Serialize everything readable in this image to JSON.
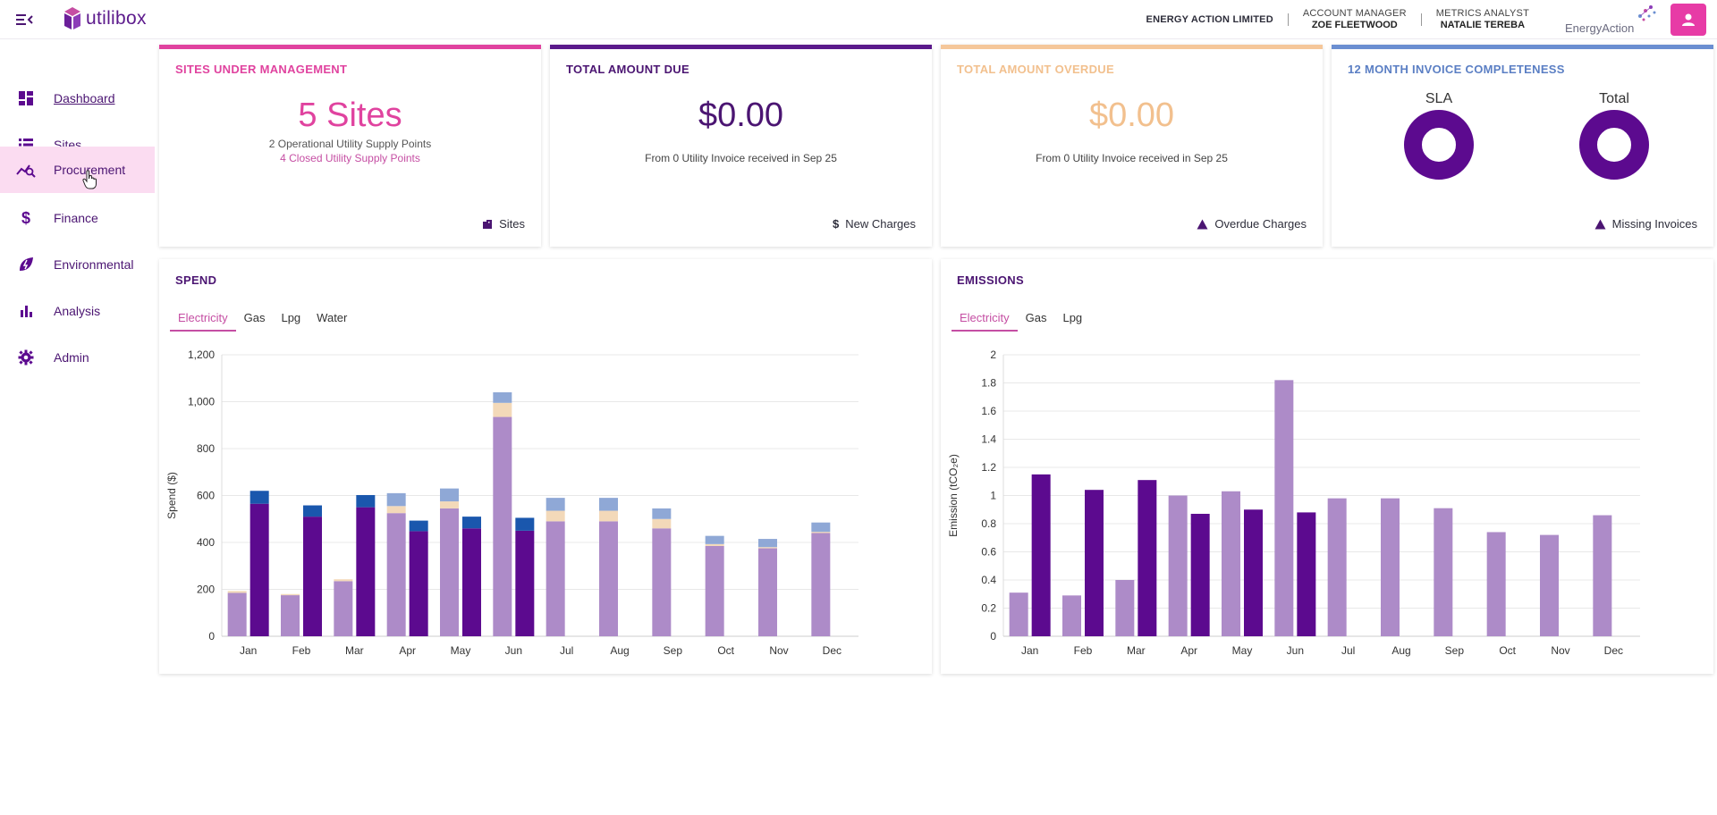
{
  "header": {
    "logo_text": "utilibox",
    "company": "ENERGY ACTION LIMITED",
    "account_manager_title": "ACCOUNT MANAGER",
    "account_manager_name": "ZOE FLEETWOOD",
    "metrics_analyst_title": "METRICS ANALYST",
    "metrics_analyst_name": "NATALIE TEREBA",
    "partner_logo_text": "EnergyAction",
    "user_button_color": "#e73ba6"
  },
  "sidebar": {
    "items": [
      {
        "label": "Dashboard",
        "icon": "dashboard-icon"
      },
      {
        "label": "Sites",
        "icon": "list-icon"
      },
      {
        "label": "Procurement",
        "icon": "trend-search-icon"
      },
      {
        "label": "Finance",
        "icon": "dollar-icon"
      },
      {
        "label": "Environmental",
        "icon": "leaf-bolt-icon"
      },
      {
        "label": "Analysis",
        "icon": "bar-chart-icon"
      },
      {
        "label": "Admin",
        "icon": "gear-icon"
      }
    ],
    "active_index": 2,
    "current_page_index": 0
  },
  "cards": {
    "sites": {
      "title": "SITES UNDER MANAGEMENT",
      "value": "5 Sites",
      "line1": "2 Operational Utility Supply Points",
      "line2": "4 Closed Utility Supply Points",
      "link": "Sites",
      "accent": "#e0439f"
    },
    "due": {
      "title": "TOTAL AMOUNT DUE",
      "value": "$0.00",
      "line1": "From 0 Utility Invoice received in Sep 25",
      "link": "New Charges",
      "link_icon": "$",
      "accent": "#5b1a8b"
    },
    "overdue": {
      "title": "TOTAL AMOUNT OVERDUE",
      "value": "$0.00",
      "line1": "From 0 Utility Invoice received in Sep 25",
      "link": "Overdue Charges",
      "accent": "#f5c79a"
    },
    "completeness": {
      "title": "12 MONTH INVOICE COMPLETENESS",
      "label1": "SLA",
      "label2": "Total",
      "link": "Missing Invoices",
      "accent": "#6b8fd1"
    }
  },
  "spend": {
    "title": "SPEND",
    "tabs": [
      "Electricity",
      "Gas",
      "Lpg",
      "Water"
    ],
    "active_tab": 0
  },
  "emissions": {
    "title": "EMISSIONS",
    "tabs": [
      "Electricity",
      "Gas",
      "Lpg"
    ],
    "active_tab": 0
  },
  "chart_data": [
    {
      "type": "bar",
      "title": "SPEND",
      "ylabel": "Spend ($)",
      "ylim": [
        0,
        1200
      ],
      "yticks": [
        "0",
        "200",
        "400",
        "600",
        "800",
        "1,000",
        "1,200"
      ],
      "categories": [
        "Jan",
        "Feb",
        "Mar",
        "Apr",
        "May",
        "Jun",
        "Jul",
        "Aug",
        "Sep",
        "Oct",
        "Nov",
        "Dec"
      ],
      "series": [
        {
          "group": "previous",
          "color": "#ad8bc8",
          "values": [
            185,
            175,
            235,
            525,
            545,
            935,
            490,
            490,
            460,
            385,
            375,
            440
          ]
        },
        {
          "group": "previous",
          "color": "#f3d9b9",
          "values": [
            8,
            5,
            8,
            30,
            30,
            60,
            45,
            45,
            40,
            8,
            5,
            5
          ]
        },
        {
          "group": "previous",
          "color": "#8fa8d6",
          "values": [
            0,
            0,
            0,
            55,
            55,
            45,
            55,
            55,
            45,
            35,
            35,
            40
          ]
        },
        {
          "group": "current",
          "color": "#5c0a8f",
          "values": [
            565,
            510,
            550,
            448,
            460,
            450,
            null,
            null,
            null,
            null,
            null,
            null
          ]
        },
        {
          "group": "current",
          "color": "#1a57ad",
          "values": [
            55,
            48,
            52,
            45,
            50,
            55,
            null,
            null,
            null,
            null,
            null,
            null
          ]
        }
      ]
    },
    {
      "type": "bar",
      "title": "EMISSIONS",
      "ylabel": "Emission (tCO₂e)",
      "ylim": [
        0,
        2
      ],
      "yticks": [
        "0",
        "0.2",
        "0.4",
        "0.6",
        "0.8",
        "1",
        "1.2",
        "1.4",
        "1.6",
        "1.8",
        "2"
      ],
      "categories": [
        "Jan",
        "Feb",
        "Mar",
        "Apr",
        "May",
        "Jun",
        "Jul",
        "Aug",
        "Sep",
        "Oct",
        "Nov",
        "Dec"
      ],
      "series": [
        {
          "group": "previous",
          "color": "#ad8bc8",
          "values": [
            0.31,
            0.29,
            0.4,
            1.0,
            1.03,
            1.82,
            0.98,
            0.98,
            0.91,
            0.74,
            0.72,
            0.86
          ]
        },
        {
          "group": "current",
          "color": "#5c0a8f",
          "values": [
            1.15,
            1.04,
            1.11,
            0.87,
            0.9,
            0.88,
            null,
            null,
            null,
            null,
            null,
            null
          ]
        }
      ]
    }
  ]
}
